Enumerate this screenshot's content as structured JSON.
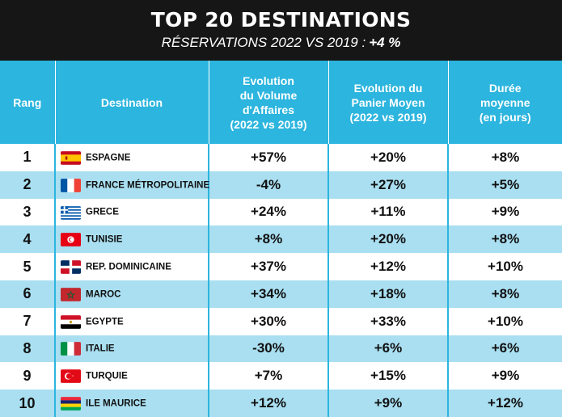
{
  "header": {
    "title": "TOP 20 DESTINATIONS",
    "subtitle": "RÉSERVATIONS 2022 VS 2019 :",
    "subtitle_value": "+4 %"
  },
  "table": {
    "columns": {
      "rank": "Rang",
      "destination": "Destination",
      "volume": [
        "Evolution",
        "du Volume",
        "d'Affaires",
        "(2022 vs 2019)"
      ],
      "panier": [
        "Evolution du",
        "Panier Moyen",
        "(2022 vs 2019)"
      ],
      "duree": [
        "Durée",
        "moyenne",
        "(en jours)"
      ]
    },
    "rows": [
      {
        "rank": "1",
        "name": "ESPAGNE",
        "flag": "spain-flag-icon",
        "volume": "+57%",
        "panier": "+20%",
        "duree": "+8%"
      },
      {
        "rank": "2",
        "name": "FRANCE MÉTROPOLITAINE",
        "flag": "france-flag-icon",
        "volume": "-4%",
        "panier": "+27%",
        "duree": "+5%"
      },
      {
        "rank": "3",
        "name": "GRECE",
        "flag": "greece-flag-icon",
        "volume": "+24%",
        "panier": "+11%",
        "duree": "+9%"
      },
      {
        "rank": "4",
        "name": "TUNISIE",
        "flag": "tunisia-flag-icon",
        "volume": "+8%",
        "panier": "+20%",
        "duree": "+8%"
      },
      {
        "rank": "5",
        "name": "REP. DOMINICAINE",
        "flag": "dominican-republic-flag-icon",
        "volume": "+37%",
        "panier": "+12%",
        "duree": "+10%"
      },
      {
        "rank": "6",
        "name": "MAROC",
        "flag": "morocco-flag-icon",
        "volume": "+34%",
        "panier": "+18%",
        "duree": "+8%"
      },
      {
        "rank": "7",
        "name": "EGYPTE",
        "flag": "egypt-flag-icon",
        "volume": "+30%",
        "panier": "+33%",
        "duree": "+10%"
      },
      {
        "rank": "8",
        "name": "ITALIE",
        "flag": "italy-flag-icon",
        "volume": "-30%",
        "panier": "+6%",
        "duree": "+6%"
      },
      {
        "rank": "9",
        "name": "TURQUIE",
        "flag": "turkey-flag-icon",
        "volume": "+7%",
        "panier": "+15%",
        "duree": "+9%"
      },
      {
        "rank": "10",
        "name": "ILE MAURICE",
        "flag": "mauritius-flag-icon",
        "volume": "+12%",
        "panier": "+9%",
        "duree": "+12%"
      }
    ]
  },
  "colors": {
    "header_bg": "#161616",
    "table_header_bg": "#2cb5de",
    "row_alt_bg": "#a9dff1"
  }
}
